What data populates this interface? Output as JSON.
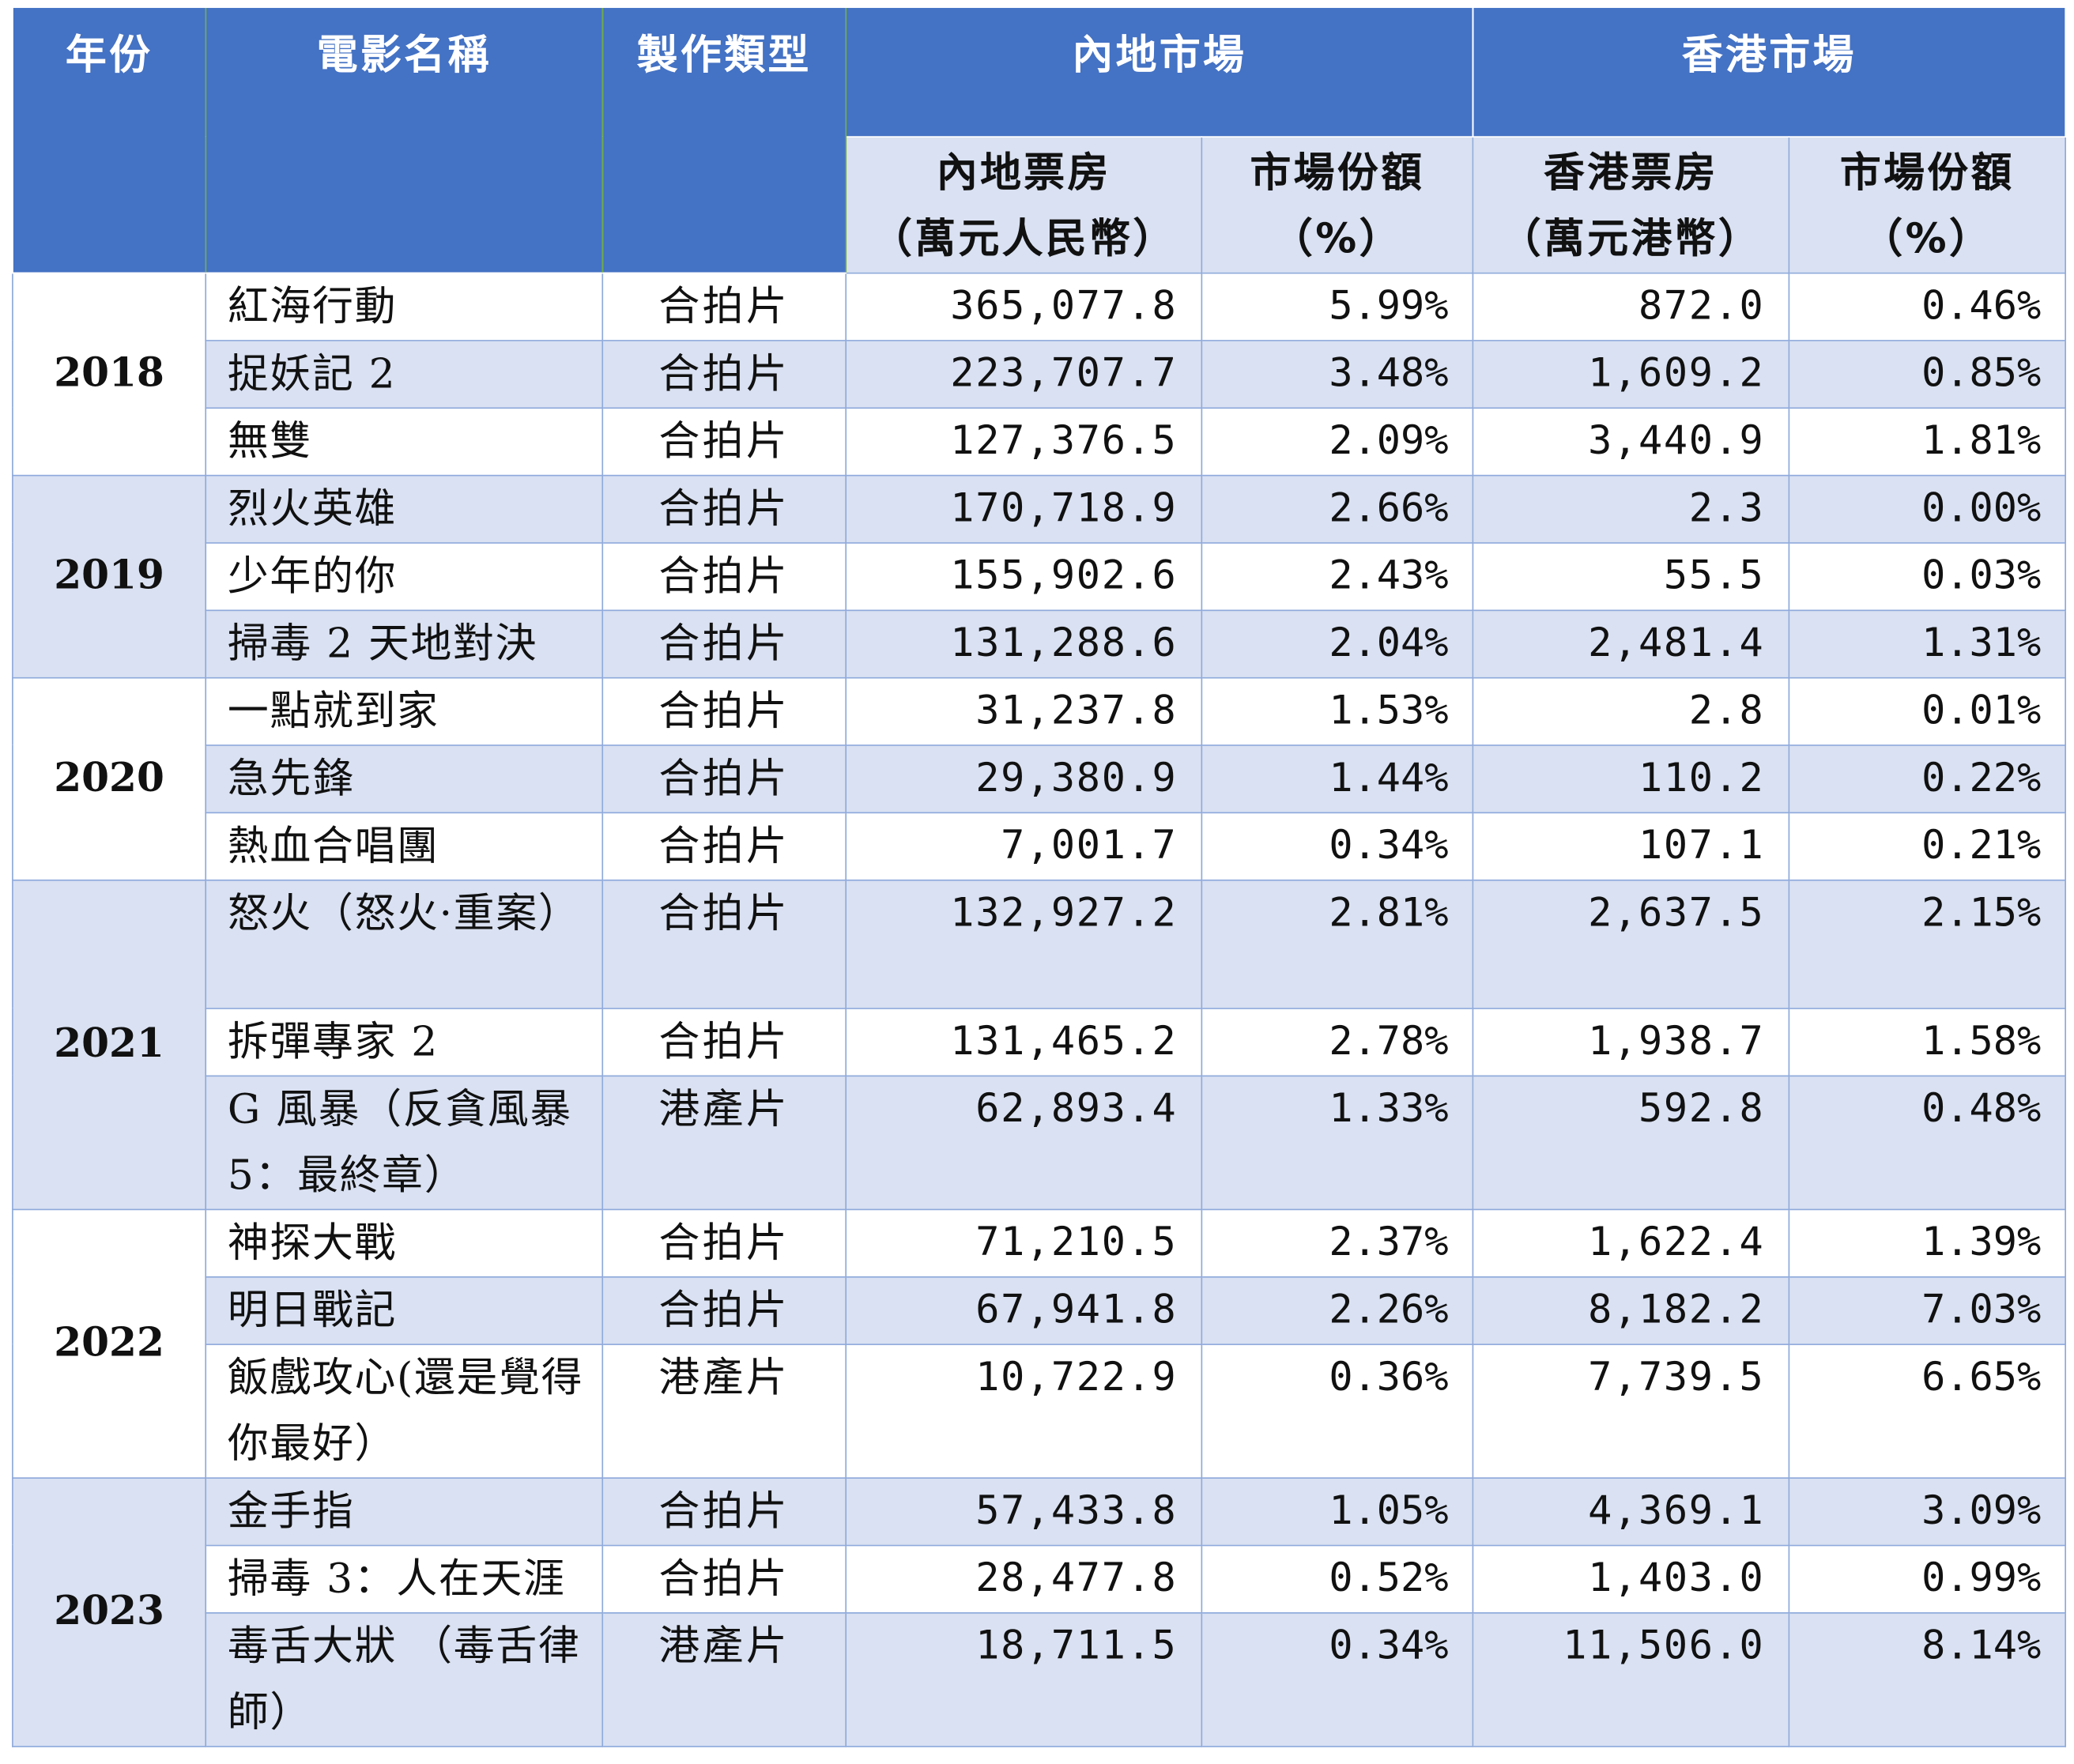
{
  "headers": {
    "year": "年份",
    "name": "電影名稱",
    "type": "製作類型",
    "mainland_market": "內地市場",
    "hk_market": "香港市場",
    "mainland_box": "內地票房",
    "mainland_box_unit": "（萬元人民幣）",
    "mainland_share": "市場份額",
    "mainland_share_unit": "（%）",
    "hk_box": "香港票房",
    "hk_box_unit": "（萬元港幣）",
    "hk_share": "市場份額",
    "hk_share_unit": "（%）"
  },
  "years": [
    "2018",
    "2019",
    "2020",
    "2021",
    "2022",
    "2023"
  ],
  "rows": [
    {
      "name": "紅海行動",
      "type": "合拍片",
      "mainland_box": "365,077.8",
      "mainland_share": "5.99%",
      "hk_box": "872.0",
      "hk_share": "0.46%"
    },
    {
      "name": "捉妖記 2",
      "type": "合拍片",
      "mainland_box": "223,707.7",
      "mainland_share": "3.48%",
      "hk_box": "1,609.2",
      "hk_share": "0.85%"
    },
    {
      "name": "無雙",
      "type": "合拍片",
      "mainland_box": "127,376.5",
      "mainland_share": "2.09%",
      "hk_box": "3,440.9",
      "hk_share": "1.81%"
    },
    {
      "name": "烈火英雄",
      "type": "合拍片",
      "mainland_box": "170,718.9",
      "mainland_share": "2.66%",
      "hk_box": "2.3",
      "hk_share": "0.00%"
    },
    {
      "name": "少年的你",
      "type": "合拍片",
      "mainland_box": "155,902.6",
      "mainland_share": "2.43%",
      "hk_box": "55.5",
      "hk_share": "0.03%"
    },
    {
      "name": "掃毒 2 天地對決",
      "type": "合拍片",
      "mainland_box": "131,288.6",
      "mainland_share": "2.04%",
      "hk_box": "2,481.4",
      "hk_share": "1.31%"
    },
    {
      "name": "一點就到家",
      "type": "合拍片",
      "mainland_box": "31,237.8",
      "mainland_share": "1.53%",
      "hk_box": "2.8",
      "hk_share": "0.01%"
    },
    {
      "name": "急先鋒",
      "type": "合拍片",
      "mainland_box": "29,380.9",
      "mainland_share": "1.44%",
      "hk_box": "110.2",
      "hk_share": "0.22%"
    },
    {
      "name": "熱血合唱團",
      "type": "合拍片",
      "mainland_box": "7,001.7",
      "mainland_share": "0.34%",
      "hk_box": "107.1",
      "hk_share": "0.21%"
    },
    {
      "name": "怒火（怒火·重案）",
      "type": "合拍片",
      "mainland_box": "132,927.2",
      "mainland_share": "2.81%",
      "hk_box": "2,637.5",
      "hk_share": "2.15%"
    },
    {
      "name": "拆彈專家 2",
      "type": "合拍片",
      "mainland_box": "131,465.2",
      "mainland_share": "2.78%",
      "hk_box": "1,938.7",
      "hk_share": "1.58%"
    },
    {
      "name": "G 風暴（反貪風暴 5：最終章）",
      "type": "港產片",
      "mainland_box": "62,893.4",
      "mainland_share": "1.33%",
      "hk_box": "592.8",
      "hk_share": "0.48%"
    },
    {
      "name": "神探大戰",
      "type": "合拍片",
      "mainland_box": "71,210.5",
      "mainland_share": "2.37%",
      "hk_box": "1,622.4",
      "hk_share": "1.39%"
    },
    {
      "name": "明日戰記",
      "type": "合拍片",
      "mainland_box": "67,941.8",
      "mainland_share": "2.26%",
      "hk_box": "8,182.2",
      "hk_share": "7.03%"
    },
    {
      "name": "飯戲攻心(還是覺得你最好）",
      "type": "港產片",
      "mainland_box": "10,722.9",
      "mainland_share": "0.36%",
      "hk_box": "7,739.5",
      "hk_share": "6.65%"
    },
    {
      "name": "金手指",
      "type": "合拍片",
      "mainland_box": "57,433.8",
      "mainland_share": "1.05%",
      "hk_box": "4,369.1",
      "hk_share": "3.09%"
    },
    {
      "name": "掃毒 3：人在天涯",
      "type": "合拍片",
      "mainland_box": "28,477.8",
      "mainland_share": "0.52%",
      "hk_box": "1,403.0",
      "hk_share": "0.99%"
    },
    {
      "name": "毒舌大狀 （毒舌律師）",
      "type": "港產片",
      "mainland_box": "18,711.5",
      "mainland_share": "0.34%",
      "hk_box": "11,506.0",
      "hk_share": "8.14%"
    }
  ]
}
